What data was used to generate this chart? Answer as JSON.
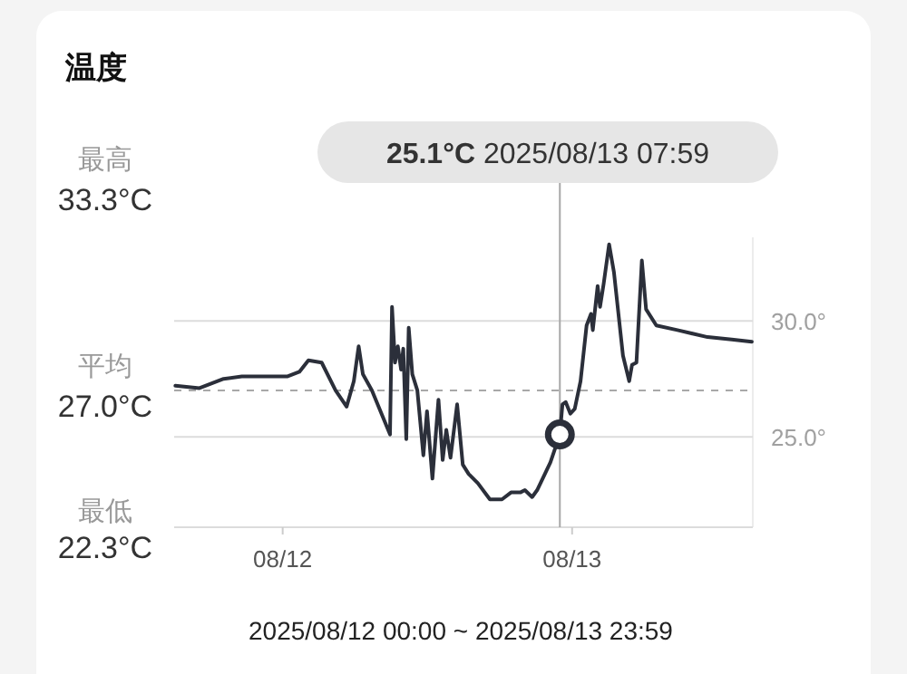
{
  "chart_data": {
    "type": "line",
    "title": "温度",
    "x": [
      "2025-08-12T00:06",
      "2025-08-12T02:06",
      "2025-08-12T04:06",
      "2025-08-12T05:37",
      "2025-08-12T09:22",
      "2025-08-12T10:23",
      "2025-08-12T11:08",
      "2025-08-12T12:14",
      "2025-08-12T13:23",
      "2025-08-12T14:18",
      "2025-08-12T14:54",
      "2025-08-12T15:18",
      "2025-08-12T15:39",
      "2025-08-12T16:24",
      "2025-08-12T17:54",
      "2025-08-12T18:04",
      "2025-08-12T18:19",
      "2025-08-12T18:33",
      "2025-08-12T18:49",
      "2025-08-12T19:00",
      "2025-08-12T19:15",
      "2025-08-12T19:27",
      "2025-08-12T19:45",
      "2025-08-12T20:10",
      "2025-08-12T20:40",
      "2025-08-12T20:58",
      "2025-08-12T21:25",
      "2025-08-12T21:55",
      "2025-08-12T22:16",
      "2025-08-12T22:34",
      "2025-08-12T22:55",
      "2025-08-12T23:28",
      "2025-08-12T23:56",
      "2025-08-13T00:25",
      "2025-08-13T01:11",
      "2025-08-13T02:11",
      "2025-08-13T03:11",
      "2025-08-13T03:56",
      "2025-08-13T04:42",
      "2025-08-13T05:05",
      "2025-08-13T05:41",
      "2025-08-13T06:06",
      "2025-08-13T07:12",
      "2025-08-13T07:59",
      "2025-08-13T08:12",
      "2025-08-13T08:28",
      "2025-08-13T08:51",
      "2025-08-13T09:13",
      "2025-08-13T09:42",
      "2025-08-13T10:12",
      "2025-08-13T10:34",
      "2025-08-13T10:43",
      "2025-08-13T11:07",
      "2025-08-13T11:19",
      "2025-08-13T11:37",
      "2025-08-13T12:04",
      "2025-08-13T12:28",
      "2025-08-13T13:13",
      "2025-08-13T13:44",
      "2025-08-13T13:58",
      "2025-08-13T14:20",
      "2025-08-13T14:47",
      "2025-08-13T15:08",
      "2025-08-13T15:59",
      "2025-08-13T17:44",
      "2025-08-13T20:14",
      "2025-08-13T22:14",
      "2025-08-13T23:54"
    ],
    "series": [
      {
        "color": "#2b2f3a",
        "values": [
          27.2,
          27.1,
          27.5,
          27.6,
          27.6,
          27.8,
          28.3,
          28.2,
          27.0,
          26.3,
          27.4,
          28.9,
          27.7,
          27.0,
          25.1,
          30.6,
          28.2,
          28.9,
          27.9,
          28.8,
          24.9,
          29.7,
          27.7,
          27.0,
          24.2,
          26.1,
          23.2,
          26.6,
          24.0,
          25.3,
          24.1,
          26.4,
          23.8,
          23.4,
          23.0,
          22.3,
          22.3,
          22.6,
          22.6,
          22.7,
          22.4,
          22.7,
          23.9,
          25.1,
          26.4,
          26.5,
          26.0,
          26.2,
          27.4,
          29.8,
          30.3,
          29.6,
          31.5,
          30.6,
          31.6,
          33.3,
          32.1,
          28.5,
          27.4,
          28.1,
          28.2,
          32.6,
          30.5,
          29.8,
          29.6,
          29.3,
          29.2,
          29.1
        ]
      }
    ],
    "xlim": [
      "2025-08-12T00:00",
      "2025-08-13T23:59"
    ],
    "xticks": [
      {
        "value": "2025-08-12T09:00",
        "label": "08/12"
      },
      {
        "value": "2025-08-13T09:00",
        "label": "08/13"
      }
    ],
    "ylim": [
      21.1,
      33.6
    ],
    "yticks": [
      {
        "value": 25.0,
        "label": "25.0°"
      },
      {
        "value": 30.0,
        "label": "30.0°"
      }
    ],
    "grid": "y",
    "marker": "none",
    "line_style": "solid",
    "ref_lines": [
      {
        "axis": "y",
        "value": 27.0,
        "color": "#a8a8a8",
        "line_style": "dashed"
      },
      {
        "axis": "x",
        "value": "2025-08-13T07:59",
        "color": "#a8a8a8",
        "line_style": "solid"
      }
    ],
    "annotations": [
      "最高",
      "33.3°C",
      "平均",
      "27.0°C",
      "最低",
      "22.3°C",
      "25.1°C 2025/08/13 07:59",
      "2025/08/12 00:00 ~ 2025/08/13 23:59"
    ]
  }
}
